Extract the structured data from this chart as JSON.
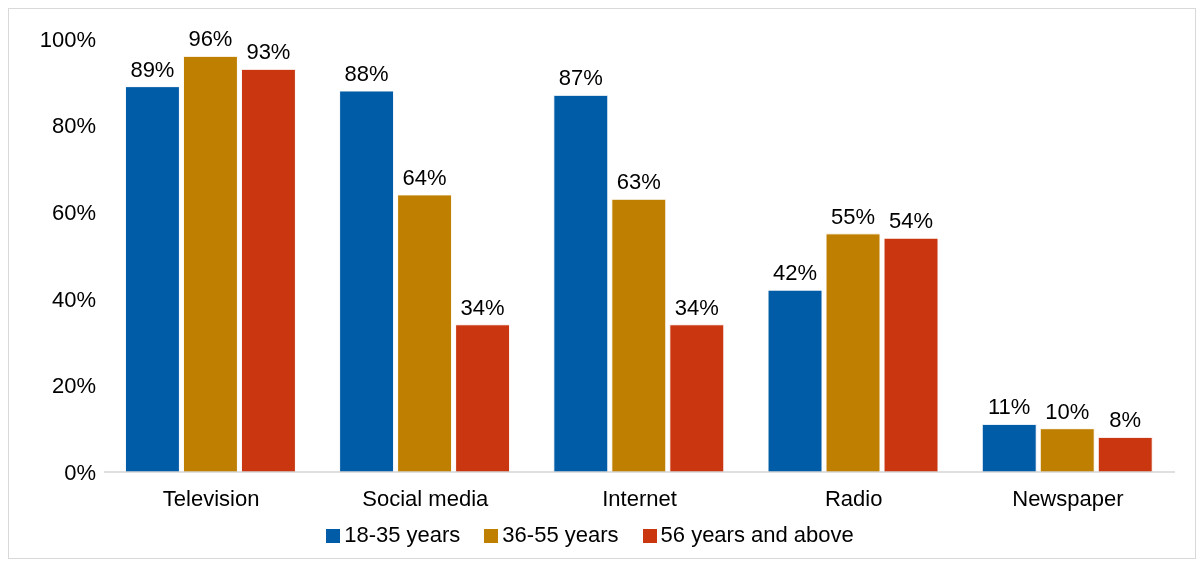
{
  "chart_data": {
    "type": "bar",
    "categories": [
      "Television",
      "Social media",
      "Internet",
      "Radio",
      "Newspaper"
    ],
    "series": [
      {
        "name": "18-35 years",
        "color": "#005ca6",
        "values": [
          89,
          88,
          87,
          42,
          11
        ],
        "value_labels": [
          "89%",
          "88%",
          "87%",
          "42%",
          "11%"
        ]
      },
      {
        "name": "36-55 years",
        "color": "#bf7f00",
        "values": [
          96,
          64,
          63,
          55,
          10
        ],
        "value_labels": [
          "96%",
          "64%",
          "63%",
          "55%",
          "10%"
        ]
      },
      {
        "name": "56 years and above",
        "color": "#c9360f",
        "values": [
          93,
          34,
          34,
          54,
          8
        ],
        "value_labels": [
          "93%",
          "34%",
          "34%",
          "54%",
          "8%"
        ]
      }
    ],
    "ylim": [
      0,
      100
    ],
    "yticks": [
      {
        "value": 0,
        "label": "0%"
      },
      {
        "value": 20,
        "label": "20%"
      },
      {
        "value": 40,
        "label": "40%"
      },
      {
        "value": 60,
        "label": "60%"
      },
      {
        "value": 80,
        "label": "80%"
      },
      {
        "value": 100,
        "label": "100%"
      }
    ],
    "grid": false,
    "legend": "bottom"
  }
}
